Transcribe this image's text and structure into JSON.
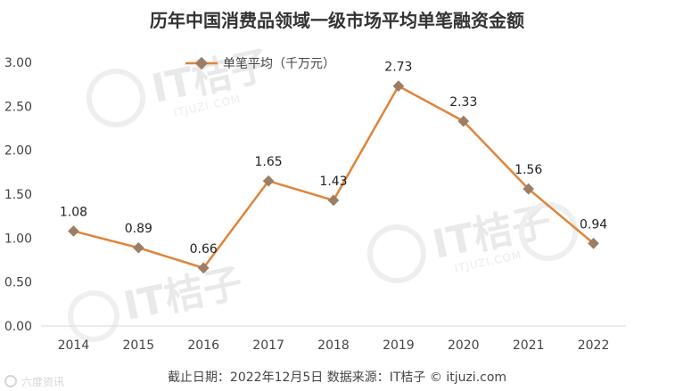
{
  "chart_data": {
    "type": "line",
    "title": "历年中国消费品领域一级市场平均单笔融资金额",
    "categories": [
      "2014",
      "2015",
      "2016",
      "2017",
      "2018",
      "2019",
      "2020",
      "2021",
      "2022"
    ],
    "series": [
      {
        "name": "单笔平均（千万元）",
        "values": [
          1.08,
          0.89,
          0.66,
          1.65,
          1.43,
          2.73,
          2.33,
          1.56,
          0.94
        ],
        "color": "#e0843a",
        "marker_color": "#9c7e66"
      }
    ],
    "yticks": [
      "0.00",
      "0.50",
      "1.00",
      "1.50",
      "2.00",
      "2.50",
      "3.00"
    ],
    "ylim": [
      0,
      3
    ],
    "grid": false,
    "legend": "top-center"
  },
  "footer": {
    "text": "截止日期：2022年12月5日    数据来源：IT桔子 © itjuzi.com"
  },
  "watermark": {
    "text": "IT桔子",
    "sub": "ITJUZI.COM"
  },
  "source_mark": {
    "text": "六度资讯"
  }
}
